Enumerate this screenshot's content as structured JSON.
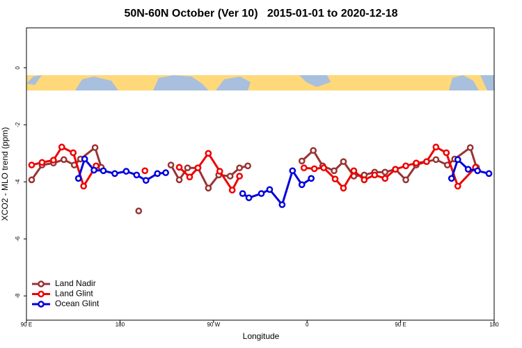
{
  "chart_data": {
    "type": "line",
    "title": "50N-60N October (Ver 10)   2015-01-01 to 2020-12-18",
    "xlabel": "Longitude",
    "ylabel": "XCO2 - MLO trend (ppm)",
    "xlim": [
      90,
      540
    ],
    "ylim": [
      -8.85,
      1.4
    ],
    "xticks": [
      {
        "value": 90,
        "label": "90 E"
      },
      180,
      {
        "value": 270,
        "label": "90 W"
      },
      {
        "value": 360,
        "label": "0"
      },
      {
        "value": 450,
        "label": "90 E"
      },
      {
        "value": 540,
        "label": "180"
      }
    ],
    "yticks": [
      0,
      -2,
      -4,
      -6,
      -8
    ],
    "legend": "bottom-left",
    "series": [
      {
        "name": "Land Nadir",
        "color": "#993333",
        "x": [
          95,
          105,
          116,
          126,
          136,
          142,
          156,
          162,
          null,
          198,
          null,
          229,
          237,
          245,
          255,
          265,
          275,
          286,
          295,
          303,
          null,
          355,
          366,
          375,
          386,
          395,
          405,
          415,
          425,
          435,
          445,
          455,
          465,
          475,
          484,
          495,
          502,
          517,
          523
        ],
        "values": [
          -3.93,
          -3.41,
          -3.34,
          -3.22,
          -3.41,
          -3.2,
          -2.8,
          -3.49,
          null,
          -5.02,
          null,
          -3.41,
          -3.93,
          -3.51,
          -3.51,
          -4.22,
          -3.76,
          -3.8,
          -3.51,
          -3.44,
          null,
          -3.27,
          -2.9,
          -3.44,
          -3.61,
          -3.29,
          -3.8,
          -3.76,
          -3.66,
          -3.66,
          -3.56,
          -3.93,
          -3.41,
          -3.29,
          -3.22,
          -3.41,
          -3.2,
          -2.8,
          -3.49
        ]
      },
      {
        "name": "Land Glint",
        "color": "#ee0000",
        "x": [
          95,
          105,
          116,
          124,
          135,
          145,
          157,
          null,
          204,
          null,
          237,
          247,
          255,
          265,
          276,
          288,
          295,
          null,
          357,
          367,
          376,
          387,
          395,
          405,
          415,
          425,
          435,
          445,
          455,
          465,
          475,
          484,
          494,
          505,
          522
        ],
        "values": [
          -3.41,
          -3.32,
          -3.24,
          -2.78,
          -2.98,
          -4.15,
          -3.44,
          null,
          -3.61,
          null,
          -3.49,
          -3.83,
          -3.51,
          -3.0,
          -3.63,
          -4.29,
          -3.8,
          null,
          -3.51,
          -3.54,
          -3.51,
          -3.9,
          -4.22,
          -3.61,
          -3.93,
          -3.76,
          -3.88,
          -3.56,
          -3.44,
          -3.34,
          -3.29,
          -2.78,
          -2.98,
          -4.15,
          -3.49
        ]
      },
      {
        "name": "Ocean Glint",
        "color": "#0000dd",
        "x": [
          140,
          146,
          155,
          164,
          175,
          186,
          196,
          205,
          216,
          224,
          null,
          298,
          304,
          316,
          324,
          336,
          346,
          355,
          364,
          null,
          499,
          505,
          515,
          524,
          535
        ],
        "values": [
          -3.88,
          -3.2,
          -3.59,
          -3.61,
          -3.71,
          -3.63,
          -3.76,
          -3.95,
          -3.71,
          -3.68,
          null,
          -4.41,
          -4.56,
          -4.41,
          -4.27,
          -4.8,
          -3.61,
          -4.1,
          -3.88,
          null,
          -3.88,
          -3.22,
          -3.56,
          -3.61,
          -3.71
        ]
      }
    ]
  }
}
